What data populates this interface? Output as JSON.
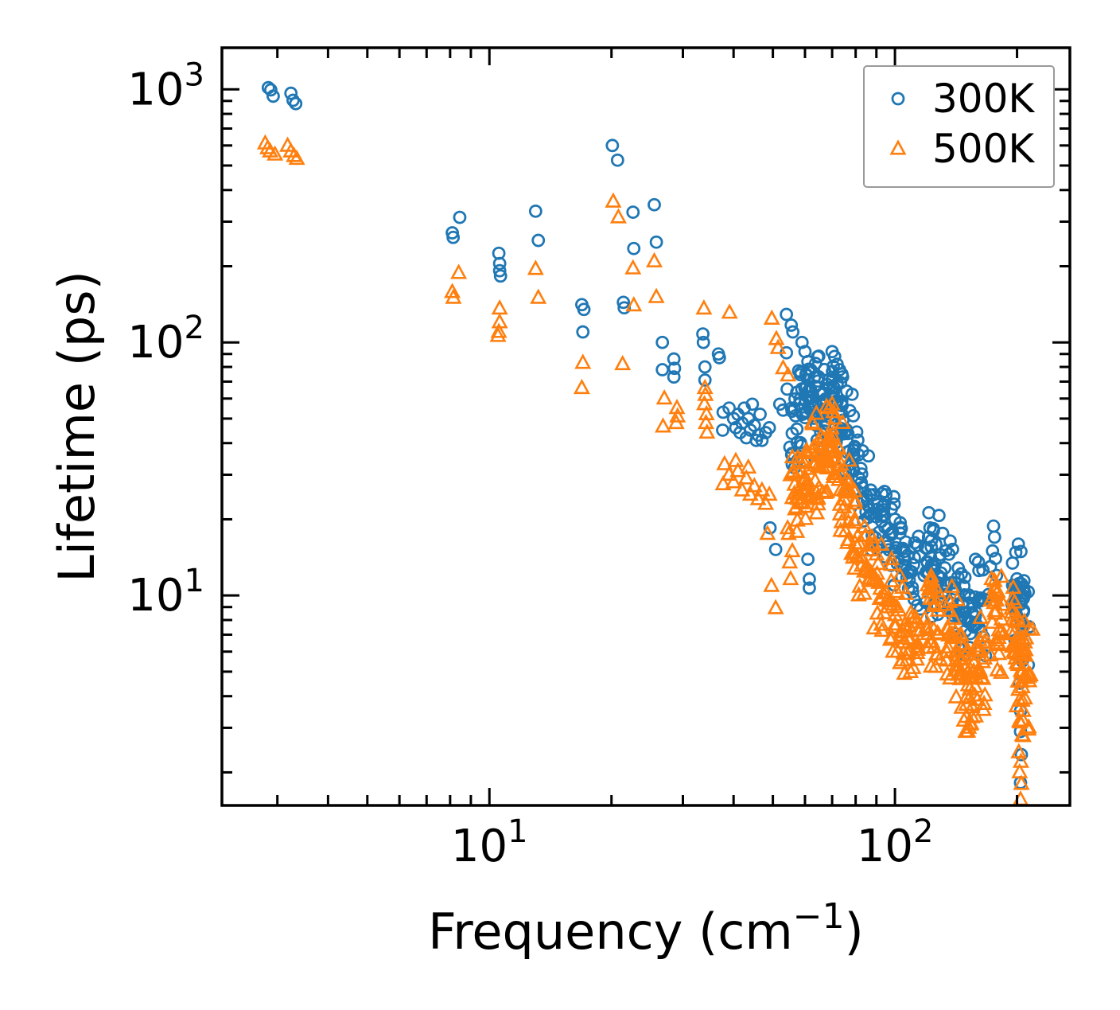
{
  "chart_data": {
    "type": "scatter",
    "title": "",
    "xlabel": {
      "pre": "Frequency (cm",
      "sup": "−1",
      "post": ")"
    },
    "ylabel": "Lifetime (ps)",
    "xscale": "log",
    "yscale": "log",
    "xlim": [
      2.19,
      270
    ],
    "ylim": [
      1.48,
      1460
    ],
    "grid": false,
    "x_major_ticks": [
      {
        "value": 10,
        "base": "10",
        "exp": "1"
      },
      {
        "value": 100,
        "base": "10",
        "exp": "2"
      }
    ],
    "y_major_ticks": [
      {
        "value": 10,
        "base": "10",
        "exp": "1"
      },
      {
        "value": 100,
        "base": "10",
        "exp": "2"
      },
      {
        "value": 1000,
        "base": "10",
        "exp": "3"
      }
    ],
    "legend": {
      "position": "upper right",
      "border_color": "#9a9a9a",
      "items": [
        {
          "label": "300K",
          "marker": "circle",
          "color": "#1f77b4"
        },
        {
          "label": "500K",
          "marker": "triangle",
          "color": "#ff7f0e"
        }
      ]
    },
    "series": [
      {
        "name": "300K",
        "marker": "circle",
        "color": "#1f77b4",
        "points": [
          [
            2.85,
            1015
          ],
          [
            2.89,
            995
          ],
          [
            2.93,
            940
          ],
          [
            3.24,
            965
          ],
          [
            3.28,
            905
          ],
          [
            3.33,
            878
          ],
          [
            8.1,
            271
          ],
          [
            8.14,
            260
          ],
          [
            8.45,
            312
          ],
          [
            10.55,
            225
          ],
          [
            10.6,
            205
          ],
          [
            10.6,
            192
          ],
          [
            10.65,
            183
          ],
          [
            13.0,
            330
          ],
          [
            13.2,
            253
          ],
          [
            16.9,
            141
          ],
          [
            17.1,
            135
          ],
          [
            17.0,
            110
          ],
          [
            20.1,
            600
          ],
          [
            20.7,
            525
          ],
          [
            21.4,
            144
          ],
          [
            21.5,
            137
          ],
          [
            22.6,
            327
          ],
          [
            22.7,
            235
          ],
          [
            25.5,
            350
          ],
          [
            25.8,
            249
          ],
          [
            26.7,
            100
          ],
          [
            26.7,
            78
          ],
          [
            28.5,
            86
          ],
          [
            28.6,
            79
          ],
          [
            28.5,
            73
          ],
          [
            33.6,
            108
          ],
          [
            33.7,
            100
          ],
          [
            34.0,
            80
          ],
          [
            34.0,
            71
          ],
          [
            36.7,
            90
          ],
          [
            36.9,
            87
          ],
          [
            37.7,
            53
          ],
          [
            37.6,
            45
          ],
          [
            39,
            55
          ],
          [
            40,
            50
          ],
          [
            40.5,
            46
          ],
          [
            41,
            52
          ],
          [
            41.5,
            44
          ],
          [
            42,
            48
          ],
          [
            43,
            42
          ],
          [
            43.5,
            50
          ],
          [
            44,
            45
          ],
          [
            45,
            47
          ],
          [
            46,
            43
          ],
          [
            47,
            41
          ],
          [
            48,
            44
          ],
          [
            49,
            46
          ],
          [
            44.5,
            57
          ],
          [
            46.5,
            52
          ],
          [
            42.5,
            55
          ],
          [
            45.5,
            41
          ],
          [
            52,
            57
          ],
          [
            53,
            54
          ],
          [
            49.2,
            18.5
          ],
          [
            50.8,
            15.2
          ],
          [
            61,
            13.9
          ],
          [
            61.5,
            11.6
          ],
          [
            61.5,
            10.7
          ],
          [
            54,
            129
          ],
          [
            55.5,
            117
          ],
          [
            56,
            110
          ],
          [
            54,
            91
          ],
          [
            59,
            100
          ],
          [
            60,
            92
          ],
          [
            61,
            84
          ],
          [
            62,
            78
          ],
          [
            70,
            92
          ],
          [
            71,
            88
          ],
          [
            72,
            82
          ],
          [
            73,
            78
          ],
          [
            74,
            75
          ],
          [
            95,
            25
          ],
          [
            98,
            22
          ],
          [
            100,
            20
          ],
          [
            121,
            17
          ],
          [
            122,
            18.5
          ],
          [
            123,
            16.5
          ],
          [
            172,
            13
          ],
          [
            174,
            15
          ],
          [
            175,
            18.8
          ],
          [
            176,
            17
          ],
          [
            177,
            14
          ],
          [
            178,
            12
          ],
          [
            203,
            4.5
          ],
          [
            204,
            3.5
          ],
          [
            204,
            2.9
          ],
          [
            205,
            2.35
          ],
          [
            204,
            1.82
          ],
          [
            206,
            5.5
          ],
          [
            207,
            6.5
          ]
        ],
        "bands": [
          {
            "n": 130,
            "spread": 0.15,
            "path": [
              [
                55,
                45
              ],
              [
                62,
                55
              ],
              [
                70,
                62
              ],
              [
                75,
                45
              ],
              [
                80,
                32
              ]
            ]
          },
          {
            "n": 90,
            "spread": 0.13,
            "path": [
              [
                80,
                30
              ],
              [
                90,
                21
              ],
              [
                100,
                16
              ],
              [
                108,
                13
              ],
              [
                115,
                11.5
              ]
            ]
          },
          {
            "n": 40,
            "spread": 0.17,
            "path": [
              [
                119,
                13.5
              ],
              [
                123,
                12.5
              ],
              [
                127,
                11.5
              ],
              [
                131,
                10.5
              ]
            ]
          },
          {
            "n": 70,
            "spread": 0.15,
            "path": [
              [
                133,
                11
              ],
              [
                140,
                10
              ],
              [
                150,
                9.2
              ],
              [
                160,
                8.8
              ],
              [
                168,
                9.4
              ]
            ]
          },
          {
            "n": 45,
            "spread": 0.17,
            "path": [
              [
                195,
                11
              ],
              [
                200,
                10
              ],
              [
                206,
                9.3
              ],
              [
                211,
                8.8
              ]
            ]
          }
        ]
      },
      {
        "name": "500K",
        "marker": "triangle",
        "color": "#ff7f0e",
        "points": [
          [
            2.8,
            611
          ],
          [
            2.84,
            585
          ],
          [
            2.88,
            568
          ],
          [
            2.96,
            552
          ],
          [
            3.18,
            598
          ],
          [
            3.24,
            568
          ],
          [
            3.3,
            545
          ],
          [
            3.35,
            531
          ],
          [
            8.1,
            158
          ],
          [
            8.15,
            150
          ],
          [
            8.4,
            188
          ],
          [
            10.6,
            136
          ],
          [
            10.6,
            120
          ],
          [
            10.55,
            110
          ],
          [
            10.5,
            106
          ],
          [
            13.0,
            195
          ],
          [
            13.2,
            150
          ],
          [
            17.0,
            83
          ],
          [
            16.9,
            66
          ],
          [
            20.2,
            360
          ],
          [
            20.8,
            312
          ],
          [
            21.3,
            82
          ],
          [
            22.6,
            196
          ],
          [
            22.7,
            140
          ],
          [
            25.5,
            209
          ],
          [
            25.8,
            151
          ],
          [
            27.0,
            60
          ],
          [
            26.8,
            46.5
          ],
          [
            29.0,
            55
          ],
          [
            29.1,
            51
          ],
          [
            28.9,
            48
          ],
          [
            33.8,
            136
          ],
          [
            34.0,
            66
          ],
          [
            34.1,
            62
          ],
          [
            33.9,
            57
          ],
          [
            34.3,
            52
          ],
          [
            34.2,
            48
          ],
          [
            34.4,
            44
          ],
          [
            39.1,
            131
          ],
          [
            37.7,
            27.5
          ],
          [
            38,
            33
          ],
          [
            39,
            30
          ],
          [
            40,
            28
          ],
          [
            41,
            31
          ],
          [
            42,
            26
          ],
          [
            43,
            29
          ],
          [
            44,
            25
          ],
          [
            45,
            27
          ],
          [
            46,
            24
          ],
          [
            47,
            26
          ],
          [
            48,
            23
          ],
          [
            49,
            25
          ],
          [
            40.5,
            34
          ],
          [
            43.5,
            32
          ],
          [
            49.7,
            124
          ],
          [
            51,
            103
          ],
          [
            51.5,
            95
          ],
          [
            53,
            79
          ],
          [
            54.5,
            74
          ],
          [
            48.5,
            17.5
          ],
          [
            49.6,
            10.9
          ],
          [
            50.8,
            8.9
          ],
          [
            55,
            13.5
          ],
          [
            55.3,
            11.6
          ],
          [
            69,
            55
          ],
          [
            70,
            57
          ],
          [
            70.5,
            53
          ],
          [
            71,
            50
          ],
          [
            103,
            5.4
          ],
          [
            105,
            5.9
          ],
          [
            105.5,
            4.9
          ],
          [
            146,
            3.6
          ],
          [
            148,
            3.2
          ],
          [
            150,
            2.9
          ],
          [
            152,
            3.0
          ],
          [
            155,
            3.3
          ],
          [
            176,
            11.4
          ],
          [
            177,
            10.5
          ],
          [
            202,
            2.4
          ],
          [
            203,
            2.0
          ],
          [
            204,
            1.56
          ],
          [
            205,
            1.8
          ],
          [
            204.5,
            2.2
          ],
          [
            206,
            2.8
          ],
          [
            207,
            3.2
          ]
        ],
        "bands": [
          {
            "n": 130,
            "spread": 0.16,
            "path": [
              [
                55,
                23
              ],
              [
                62,
                30
              ],
              [
                70,
                40
              ],
              [
                75,
                27
              ],
              [
                80,
                19
              ]
            ]
          },
          {
            "n": 90,
            "spread": 0.14,
            "path": [
              [
                80,
                15
              ],
              [
                90,
                11
              ],
              [
                100,
                8.5
              ],
              [
                108,
                7
              ],
              [
                115,
                6.3
              ]
            ]
          },
          {
            "n": 30,
            "spread": 0.15,
            "path": [
              [
                119,
                8.5
              ],
              [
                124,
                8
              ],
              [
                129,
                7.3
              ]
            ]
          },
          {
            "n": 85,
            "spread": 0.17,
            "path": [
              [
                133,
                7.2
              ],
              [
                140,
                6.3
              ],
              [
                148,
                5.2
              ],
              [
                155,
                4.6
              ],
              [
                162,
                5.3
              ],
              [
                168,
                5.8
              ]
            ]
          },
          {
            "n": 25,
            "spread": 0.15,
            "path": [
              [
                173,
                8.8
              ],
              [
                178,
                8.2
              ],
              [
                184,
                7.2
              ]
            ]
          },
          {
            "n": 60,
            "spread": 0.19,
            "path": [
              [
                193,
                6.8
              ],
              [
                199,
                5.8
              ],
              [
                205,
                4.8
              ],
              [
                210,
                4.3
              ],
              [
                215,
                4.9
              ]
            ]
          }
        ]
      }
    ]
  }
}
